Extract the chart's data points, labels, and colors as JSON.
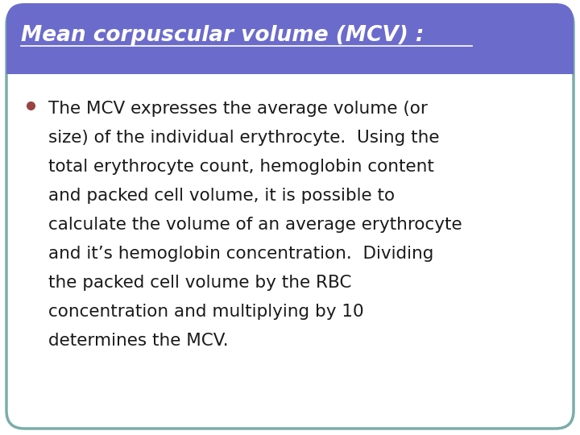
{
  "title": "Mean corpuscular volume (MCV) :",
  "title_color": "#ffffff",
  "title_bg_color": "#6b6bcc",
  "title_fontsize": 19,
  "body_lines": [
    "The MCV expresses the average volume (or",
    "size) of the individual erythrocyte.  Using the",
    "total erythrocyte count, hemoglobin content",
    "and packed cell volume, it is possible to",
    "calculate the volume of an average erythrocyte",
    "and it’s hemoglobin concentration.  Dividing",
    "the packed cell volume by the RBC",
    "concentration and multiplying by 10",
    "determines the MCV."
  ],
  "body_fontsize": 15.5,
  "bullet_color": "#994444",
  "border_color": "#7aadaa",
  "background_color": "#ffffff",
  "slide_bg": "#ffffff",
  "title_underline_color": "#ffffff",
  "separator_color": "#ffffff"
}
